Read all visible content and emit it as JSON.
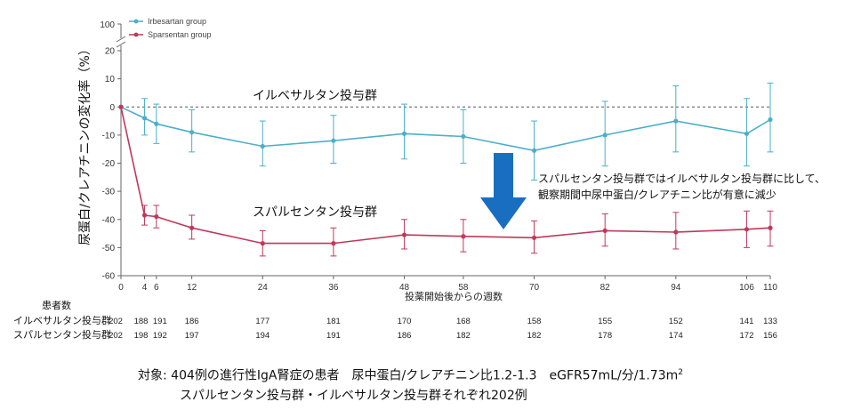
{
  "chart_data": {
    "type": "line",
    "ylabel": "尿蛋白/クレアチニンの変化率（%）",
    "xlabel": "投薬開始後からの週数",
    "xticks": [
      0,
      4,
      6,
      12,
      24,
      36,
      48,
      58,
      70,
      82,
      94,
      106,
      110
    ],
    "ylim": [
      -60,
      20
    ],
    "yticks": [
      20,
      10,
      0,
      -10,
      -20,
      -30,
      -40,
      -50,
      -60
    ],
    "ybreak_label": "100",
    "legend_position": "top-left",
    "series": [
      {
        "name": "Irbesartan group",
        "color": "#4bafc8",
        "x": [
          0,
          4,
          6,
          12,
          24,
          36,
          48,
          58,
          70,
          82,
          94,
          106,
          110
        ],
        "y": [
          0,
          -4,
          -6,
          -9,
          -14,
          -12,
          -9.5,
          -10.5,
          -15.5,
          -10,
          -5,
          -9.5,
          -4.5
        ],
        "lower": [
          0,
          -10,
          -13,
          -16,
          -21,
          -20,
          -18.5,
          -20,
          -26,
          -21,
          -16,
          -21,
          -16
        ],
        "upper": [
          0,
          3,
          1,
          -1,
          -5,
          -3,
          1,
          -1,
          -5,
          2,
          7.5,
          3,
          8.5
        ]
      },
      {
        "name": "Sparsentan group",
        "color": "#c0385a",
        "x": [
          0,
          4,
          6,
          12,
          24,
          36,
          48,
          58,
          70,
          82,
          94,
          106,
          110
        ],
        "y": [
          0,
          -38.5,
          -39,
          -43,
          -48.5,
          -48.5,
          -45.5,
          -46,
          -46.5,
          -44,
          -44.5,
          -43.5,
          -43
        ],
        "lower": [
          0,
          -42,
          -43,
          -47,
          -53,
          -53,
          -50.5,
          -51.5,
          -52,
          -49.5,
          -50.5,
          -50,
          -49.5
        ],
        "upper": [
          0,
          -35,
          -35,
          -38.5,
          -44,
          -43,
          -40,
          -40,
          -40.5,
          -38,
          -37.5,
          -37,
          -37
        ]
      }
    ],
    "annotations": {
      "irbesartan_label": "イルベサルタン投与群",
      "sparsentan_label": "スパルセンタン投与群",
      "note_line1": "スパルセンタン投与群ではイルベサルタン投与群に比して、",
      "note_line2": "観察期間中尿中蛋白/クレアチニン比が有意に減少"
    }
  },
  "patients": {
    "header": "患者数",
    "rows": [
      {
        "label": "イルベサルタン投与群",
        "values": [
          "202",
          "188",
          "191",
          "186",
          "177",
          "181",
          "170",
          "168",
          "158",
          "155",
          "152",
          "141",
          "133"
        ]
      },
      {
        "label": "スパルセンタン投与群",
        "values": [
          "202",
          "198",
          "192",
          "197",
          "194",
          "191",
          "186",
          "182",
          "182",
          "178",
          "174",
          "172",
          "156"
        ]
      }
    ]
  },
  "footer": {
    "line1_main": "対象: 404例の進行性IgA腎症の患者　尿中蛋白/クレアチニン比1.2-1.3　eGFR57mL/分/1.73m",
    "line1_sup": "2",
    "line2": "スパルセンタン投与群・イルベサルタン投与群それぞれ202例"
  },
  "colors": {
    "irbesartan": "#4bafc8",
    "sparsentan": "#c0385a",
    "arrow": "#1a6ec0"
  }
}
